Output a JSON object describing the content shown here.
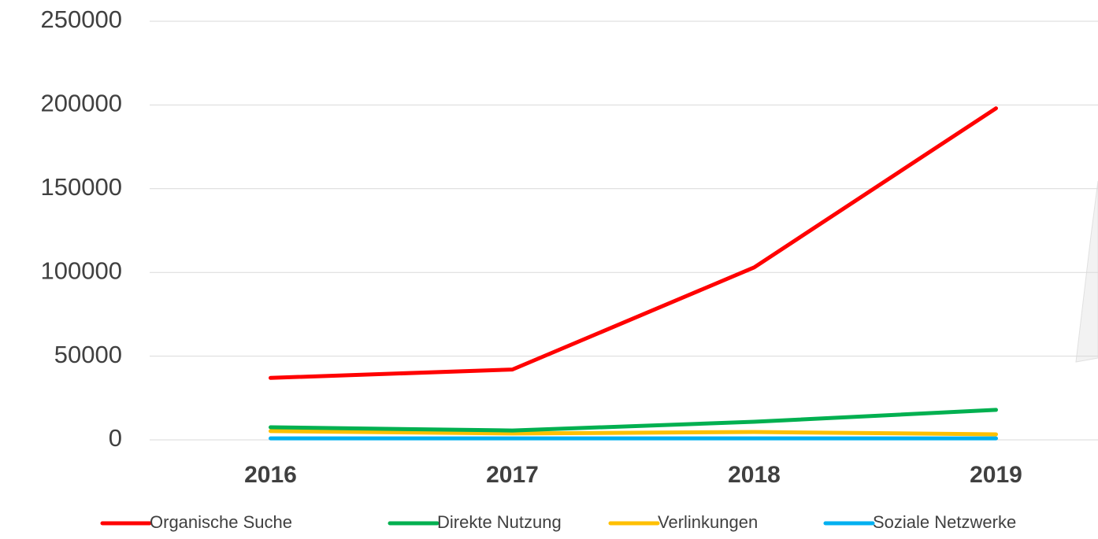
{
  "chart_data": {
    "type": "line",
    "categories": [
      "2016",
      "2017",
      "2018",
      "2019"
    ],
    "series": [
      {
        "name": "Organische Suche",
        "color": "#ff0000",
        "values": [
          37000,
          42000,
          103000,
          198000
        ]
      },
      {
        "name": "Direkte Nutzung",
        "color": "#00b050",
        "values": [
          7500,
          5600,
          10800,
          17900
        ]
      },
      {
        "name": "Verlinkungen",
        "color": "#ffc000",
        "values": [
          5200,
          3800,
          4700,
          3300
        ]
      },
      {
        "name": "Soziale Netzwerke",
        "color": "#00b0f0",
        "values": [
          900,
          900,
          900,
          900
        ]
      }
    ],
    "ylim": [
      0,
      250000
    ],
    "yticks": [
      0,
      50000,
      100000,
      150000,
      200000,
      250000
    ],
    "grid": true
  }
}
